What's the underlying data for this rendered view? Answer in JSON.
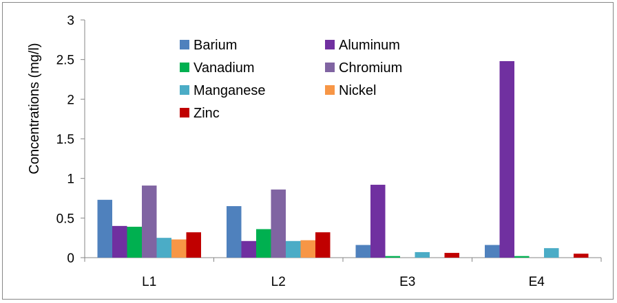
{
  "chart_data": {
    "type": "bar",
    "title": "",
    "xlabel": "",
    "ylabel": "Concentrations (mg/l)",
    "ylim": [
      0,
      3
    ],
    "yticks": [
      "0",
      "0.5",
      "1",
      "1.5",
      "2",
      "2.5",
      "3"
    ],
    "categories": [
      "L1",
      "L2",
      "E3",
      "E4"
    ],
    "grid": false,
    "legend_position": "top-center",
    "series": [
      {
        "name": "Barium",
        "color": "#4f81bd",
        "values": [
          0.73,
          0.65,
          0.16,
          0.16
        ]
      },
      {
        "name": "Aluminum",
        "color": "#7030a0",
        "values": [
          0.4,
          0.21,
          0.92,
          2.48
        ]
      },
      {
        "name": "Vanadium",
        "color": "#00b050",
        "values": [
          0.39,
          0.36,
          0.02,
          0.02
        ]
      },
      {
        "name": "Chromium",
        "color": "#8064a2",
        "values": [
          0.91,
          0.86,
          0,
          0
        ]
      },
      {
        "name": "Manganese",
        "color": "#4bacc6",
        "values": [
          0.25,
          0.21,
          0.07,
          0.12
        ]
      },
      {
        "name": "Nickel",
        "color": "#f79646",
        "values": [
          0.23,
          0.22,
          0,
          0
        ]
      },
      {
        "name": "Zinc",
        "color": "#c00000",
        "values": [
          0.32,
          0.32,
          0.06,
          0.05
        ]
      }
    ]
  }
}
